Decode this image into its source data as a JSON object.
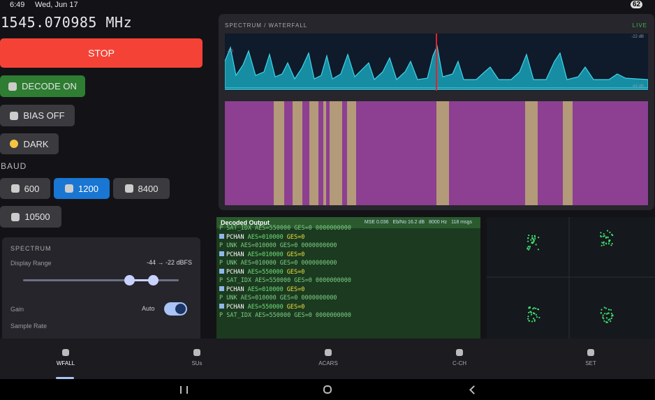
{
  "status": {
    "time": "6:49",
    "date": "Wed, Jun 17",
    "battery": "62"
  },
  "frequency": "1545.070985 MHz",
  "controls": {
    "stop": "STOP",
    "decode": "DECODE ON",
    "bias": "BIAS OFF",
    "theme": "DARK"
  },
  "baud": {
    "title": "BAUD",
    "options": [
      "600",
      "1200",
      "8400",
      "10500"
    ]
  },
  "spectrum_settings": {
    "title": "SPECTRUM",
    "range_label": "Display Range",
    "range_value": "-44 → -22 dBFS",
    "gain": "Gain",
    "gain_mode": "Auto",
    "sample_rate": "Sample Rate"
  },
  "waterfall": {
    "title": "SPECTRUM / WATERFALL",
    "status": "LIVE",
    "top_label": "-22 dB",
    "bottom_label": "-44 dB",
    "left_label": "-30"
  },
  "output": {
    "title": "Decoded Output",
    "stats": [
      "MSE 0.036",
      "Eb/No 16.2 dB",
      "8000 Hz",
      "118 msgs"
    ],
    "messages": [
      {
        "label": "P SAT_IDX",
        "aes": "AES=550000",
        "ges": "GES=0",
        "data": "0000000000"
      },
      {
        "label": "PCHAN",
        "aes": "AES=010000",
        "ges": "GES=0"
      },
      {
        "label": "P UNK",
        "aes": "AES=010000",
        "ges": "GES=0",
        "data": "0000000000"
      },
      {
        "label": "PCHAN",
        "aes": "AES=010000",
        "ges": "GES=0"
      },
      {
        "label": "P UNK",
        "aes": "AES=010000",
        "ges": "GES=0",
        "data": "0000000000"
      },
      {
        "label": "PCHAN",
        "aes": "AES=550000",
        "ges": "GES=0"
      },
      {
        "label": "P SAT_IDX",
        "aes": "AES=550000",
        "ges": "GES=0",
        "data": "0000000000"
      },
      {
        "label": "PCHAN",
        "aes": "AES=010000",
        "ges": "GES=0"
      },
      {
        "label": "P UNK",
        "aes": "AES=010000",
        "ges": "GES=0",
        "data": "0000000000"
      },
      {
        "label": "PCHAN",
        "aes": "AES=550000",
        "ges": "GES=0"
      },
      {
        "label": "P SAT_IDX",
        "aes": "AES=550000",
        "ges": "GES=0",
        "data": "0000000000"
      }
    ]
  },
  "nav": [
    "WFALL",
    "SUs",
    "ACARS",
    "C-CH",
    "SET"
  ]
}
